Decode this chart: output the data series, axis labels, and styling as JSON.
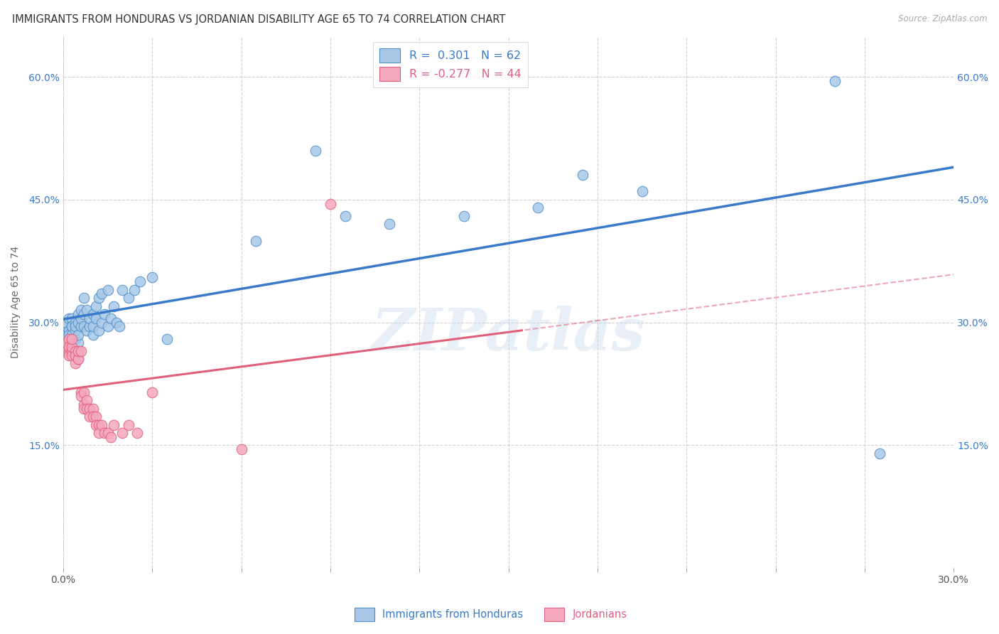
{
  "title": "IMMIGRANTS FROM HONDURAS VS JORDANIAN DISABILITY AGE 65 TO 74 CORRELATION CHART",
  "source": "Source: ZipAtlas.com",
  "ylabel": "Disability Age 65 to 74",
  "xlim": [
    0.0,
    0.3
  ],
  "ylim": [
    0.0,
    0.65
  ],
  "xticks": [
    0.0,
    0.03,
    0.06,
    0.09,
    0.12,
    0.15,
    0.18,
    0.21,
    0.24,
    0.27,
    0.3
  ],
  "xtick_labels_show": [
    "0.0%",
    "",
    "",
    "",
    "",
    "",
    "",
    "",
    "",
    "",
    "30.0%"
  ],
  "yticks": [
    0.0,
    0.15,
    0.3,
    0.45,
    0.6
  ],
  "ytick_labels": [
    "",
    "15.0%",
    "30.0%",
    "45.0%",
    "60.0%"
  ],
  "legend_label1": "R =  0.301   N = 62",
  "legend_label2": "R = -0.277   N = 44",
  "blue_fill": "#a8c8e8",
  "blue_edge": "#5090c8",
  "pink_fill": "#f5a8be",
  "pink_edge": "#e06080",
  "blue_line": "#3a7ac8",
  "pink_line": "#e0607a",
  "watermark_text": "ZIPatlas",
  "bottom_label1": "Immigrants from Honduras",
  "bottom_label2": "Jordanians",
  "blue_dots_x": [
    0.001,
    0.001,
    0.001,
    0.002,
    0.002,
    0.002,
    0.002,
    0.003,
    0.003,
    0.003,
    0.003,
    0.003,
    0.004,
    0.004,
    0.004,
    0.004,
    0.005,
    0.005,
    0.005,
    0.005,
    0.006,
    0.006,
    0.006,
    0.007,
    0.007,
    0.007,
    0.008,
    0.008,
    0.009,
    0.009,
    0.01,
    0.01,
    0.01,
    0.011,
    0.011,
    0.012,
    0.012,
    0.013,
    0.013,
    0.014,
    0.015,
    0.015,
    0.016,
    0.017,
    0.018,
    0.019,
    0.02,
    0.022,
    0.024,
    0.026,
    0.03,
    0.035,
    0.065,
    0.085,
    0.095,
    0.11,
    0.135,
    0.16,
    0.175,
    0.195,
    0.26,
    0.275
  ],
  "blue_dots_y": [
    0.285,
    0.295,
    0.3,
    0.28,
    0.29,
    0.305,
    0.285,
    0.275,
    0.295,
    0.305,
    0.285,
    0.295,
    0.28,
    0.29,
    0.3,
    0.295,
    0.275,
    0.285,
    0.3,
    0.31,
    0.295,
    0.305,
    0.315,
    0.295,
    0.31,
    0.33,
    0.29,
    0.315,
    0.295,
    0.305,
    0.285,
    0.295,
    0.31,
    0.305,
    0.32,
    0.29,
    0.33,
    0.3,
    0.335,
    0.31,
    0.295,
    0.34,
    0.305,
    0.32,
    0.3,
    0.295,
    0.34,
    0.33,
    0.34,
    0.35,
    0.355,
    0.28,
    0.4,
    0.51,
    0.43,
    0.42,
    0.43,
    0.44,
    0.48,
    0.46,
    0.595,
    0.14
  ],
  "pink_dots_x": [
    0.001,
    0.001,
    0.001,
    0.002,
    0.002,
    0.002,
    0.002,
    0.003,
    0.003,
    0.003,
    0.003,
    0.004,
    0.004,
    0.004,
    0.005,
    0.005,
    0.005,
    0.006,
    0.006,
    0.006,
    0.007,
    0.007,
    0.007,
    0.008,
    0.008,
    0.009,
    0.009,
    0.01,
    0.01,
    0.011,
    0.011,
    0.012,
    0.012,
    0.013,
    0.014,
    0.015,
    0.016,
    0.017,
    0.02,
    0.022,
    0.025,
    0.03,
    0.06,
    0.09
  ],
  "pink_dots_y": [
    0.27,
    0.275,
    0.265,
    0.265,
    0.28,
    0.27,
    0.26,
    0.265,
    0.26,
    0.27,
    0.28,
    0.25,
    0.265,
    0.26,
    0.255,
    0.255,
    0.265,
    0.265,
    0.215,
    0.21,
    0.215,
    0.2,
    0.195,
    0.205,
    0.195,
    0.195,
    0.185,
    0.195,
    0.185,
    0.185,
    0.175,
    0.175,
    0.165,
    0.175,
    0.165,
    0.165,
    0.16,
    0.175,
    0.165,
    0.175,
    0.165,
    0.215,
    0.145,
    0.445
  ]
}
